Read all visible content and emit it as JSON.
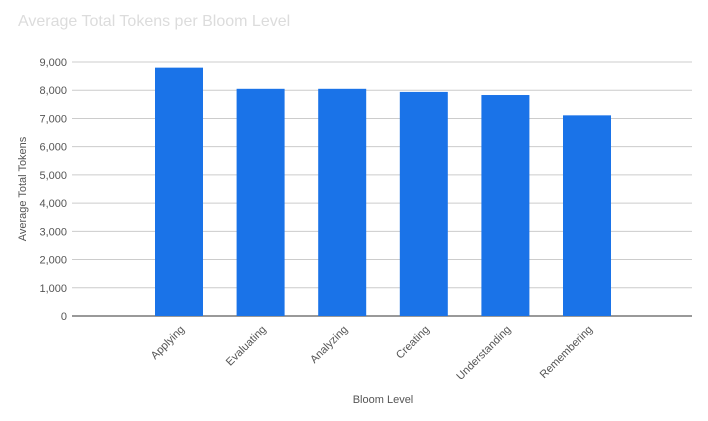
{
  "chart_data": {
    "type": "bar",
    "title": "Average Total Tokens per Bloom Level",
    "xlabel": "Bloom Level",
    "ylabel": "Average Total Tokens",
    "categories": [
      "Applying",
      "Evaluating",
      "Analyzing",
      "Creating",
      "Understanding",
      "Remembering"
    ],
    "values": [
      8800,
      8050,
      8050,
      7940,
      7830,
      7110
    ],
    "ylim": [
      0,
      9000
    ],
    "yticks": [
      0,
      1000,
      2000,
      3000,
      4000,
      5000,
      6000,
      7000,
      8000,
      9000
    ],
    "ytick_labels": [
      "0",
      "1,000",
      "2,000",
      "3,000",
      "4,000",
      "5,000",
      "6,000",
      "7,000",
      "8,000",
      "9,000"
    ],
    "grid": true,
    "legend": "none",
    "bar_color": "#1a73e8"
  }
}
